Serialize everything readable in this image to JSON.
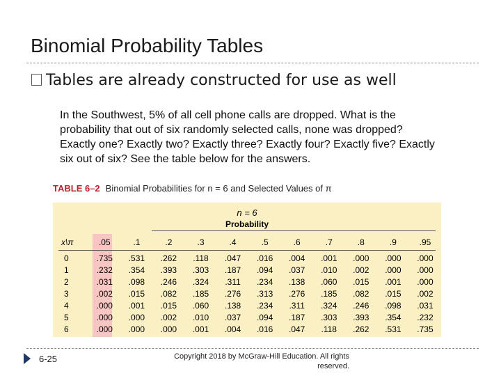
{
  "slide": {
    "title": "Binomial Probability Tables",
    "bullet": "Tables are already constructed for use as well",
    "paragraph": "In the Southwest, 5% of all cell phone calls are dropped. What is the probability that out of six randomly selected calls, none was dropped? Exactly one? Exactly two? Exactly three? Exactly four? Exactly five? Exactly six out of six? See the table below for the answers.",
    "page_number": "6-25",
    "copyright": "Copyright  2018 by McGraw-Hill Education.  All rights reserved."
  },
  "table": {
    "label": "TABLE 6–2",
    "caption": "Binomial Probabilities for n = 6 and Selected Values of π",
    "n_label": "n = 6",
    "prob_label": "Probability",
    "corner": "x\\π",
    "columns": [
      ".05",
      ".1",
      ".2",
      ".3",
      ".4",
      ".5",
      ".6",
      ".7",
      ".8",
      ".9",
      ".95"
    ],
    "highlight_color": "#f7c6c3",
    "background_color": "#fbf0c4",
    "rows": [
      {
        "x": "0",
        "values": [
          ".735",
          ".531",
          ".262",
          ".118",
          ".047",
          ".016",
          ".004",
          ".001",
          ".000",
          ".000",
          ".000"
        ]
      },
      {
        "x": "1",
        "values": [
          ".232",
          ".354",
          ".393",
          ".303",
          ".187",
          ".094",
          ".037",
          ".010",
          ".002",
          ".000",
          ".000"
        ]
      },
      {
        "x": "2",
        "values": [
          ".031",
          ".098",
          ".246",
          ".324",
          ".311",
          ".234",
          ".138",
          ".060",
          ".015",
          ".001",
          ".000"
        ]
      },
      {
        "x": "3",
        "values": [
          ".002",
          ".015",
          ".082",
          ".185",
          ".276",
          ".313",
          ".276",
          ".185",
          ".082",
          ".015",
          ".002"
        ]
      },
      {
        "x": "4",
        "values": [
          ".000",
          ".001",
          ".015",
          ".060",
          ".138",
          ".234",
          ".311",
          ".324",
          ".246",
          ".098",
          ".031"
        ]
      },
      {
        "x": "5",
        "values": [
          ".000",
          ".000",
          ".002",
          ".010",
          ".037",
          ".094",
          ".187",
          ".303",
          ".393",
          ".354",
          ".232"
        ]
      },
      {
        "x": "6",
        "values": [
          ".000",
          ".000",
          ".000",
          ".001",
          ".004",
          ".016",
          ".047",
          ".118",
          ".262",
          ".531",
          ".735"
        ]
      }
    ]
  }
}
